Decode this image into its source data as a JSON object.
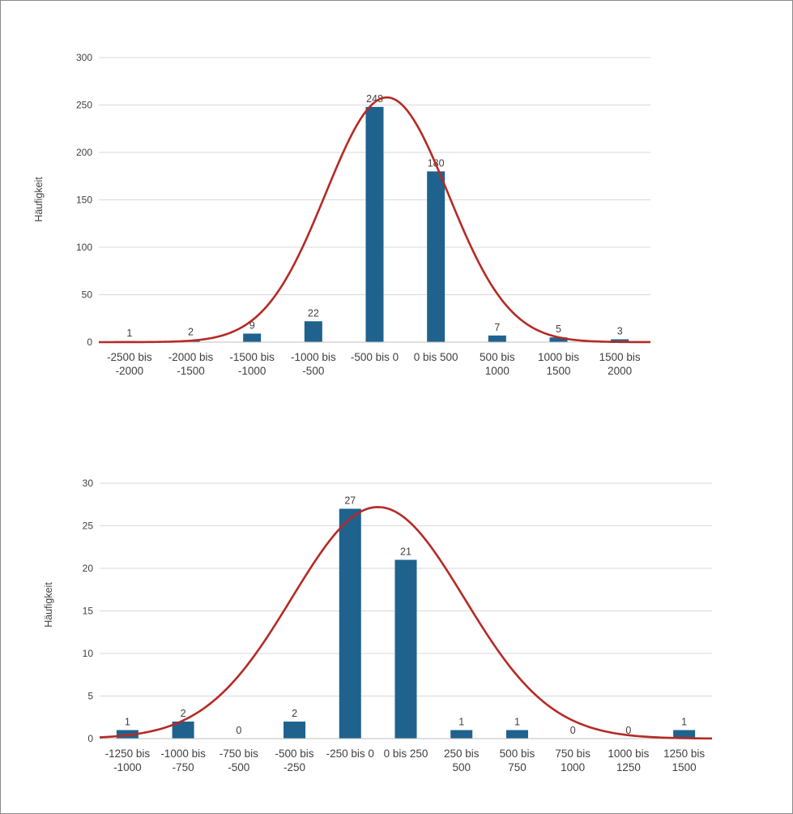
{
  "colors": {
    "bar": "#1f628e",
    "curve": "#b52a25"
  },
  "chart_data": [
    {
      "type": "bar",
      "ylabel": "Häufigkeit",
      "ylim": [
        0,
        300
      ],
      "yticks": [
        0,
        50,
        100,
        150,
        200,
        250,
        300
      ],
      "categories": [
        [
          "-2500 bis",
          "-2000"
        ],
        [
          "-2000 bis",
          "-1500"
        ],
        [
          "-1500 bis",
          "-1000"
        ],
        [
          "-1000 bis",
          "-500"
        ],
        [
          "-500 bis 0"
        ],
        [
          "0 bis 500"
        ],
        [
          "500 bis",
          "1000"
        ],
        [
          "1000 bis",
          "1500"
        ],
        [
          "1500 bis",
          "2000"
        ]
      ],
      "values": [
        1,
        2,
        9,
        22,
        248,
        180,
        7,
        5,
        3
      ],
      "curve": {
        "type": "normal-fit",
        "mean_index": 4.2,
        "sd_index": 1.0,
        "peak": 258
      },
      "grid": true,
      "legend": "none"
    },
    {
      "type": "bar",
      "ylabel": "Häufigkeit",
      "ylim": [
        0,
        30
      ],
      "yticks": [
        0,
        5,
        10,
        15,
        20,
        25,
        30
      ],
      "categories": [
        [
          "-1250 bis",
          "-1000"
        ],
        [
          "-1000 bis",
          "-750"
        ],
        [
          "-750 bis",
          "-500"
        ],
        [
          "-500 bis",
          "-250"
        ],
        [
          "-250 bis 0"
        ],
        [
          "0 bis 250"
        ],
        [
          "250 bis",
          "500"
        ],
        [
          "500 bis",
          "750"
        ],
        [
          "750 bis",
          "1000"
        ],
        [
          "1000 bis",
          "1250"
        ],
        [
          "1250 bis",
          "1500"
        ]
      ],
      "values": [
        1,
        2,
        0,
        2,
        27,
        21,
        1,
        1,
        0,
        0,
        1
      ],
      "curve": {
        "type": "normal-fit",
        "mean_index": 4.5,
        "sd_index": 1.55,
        "peak": 27.2
      },
      "grid": true,
      "legend": "none"
    }
  ]
}
